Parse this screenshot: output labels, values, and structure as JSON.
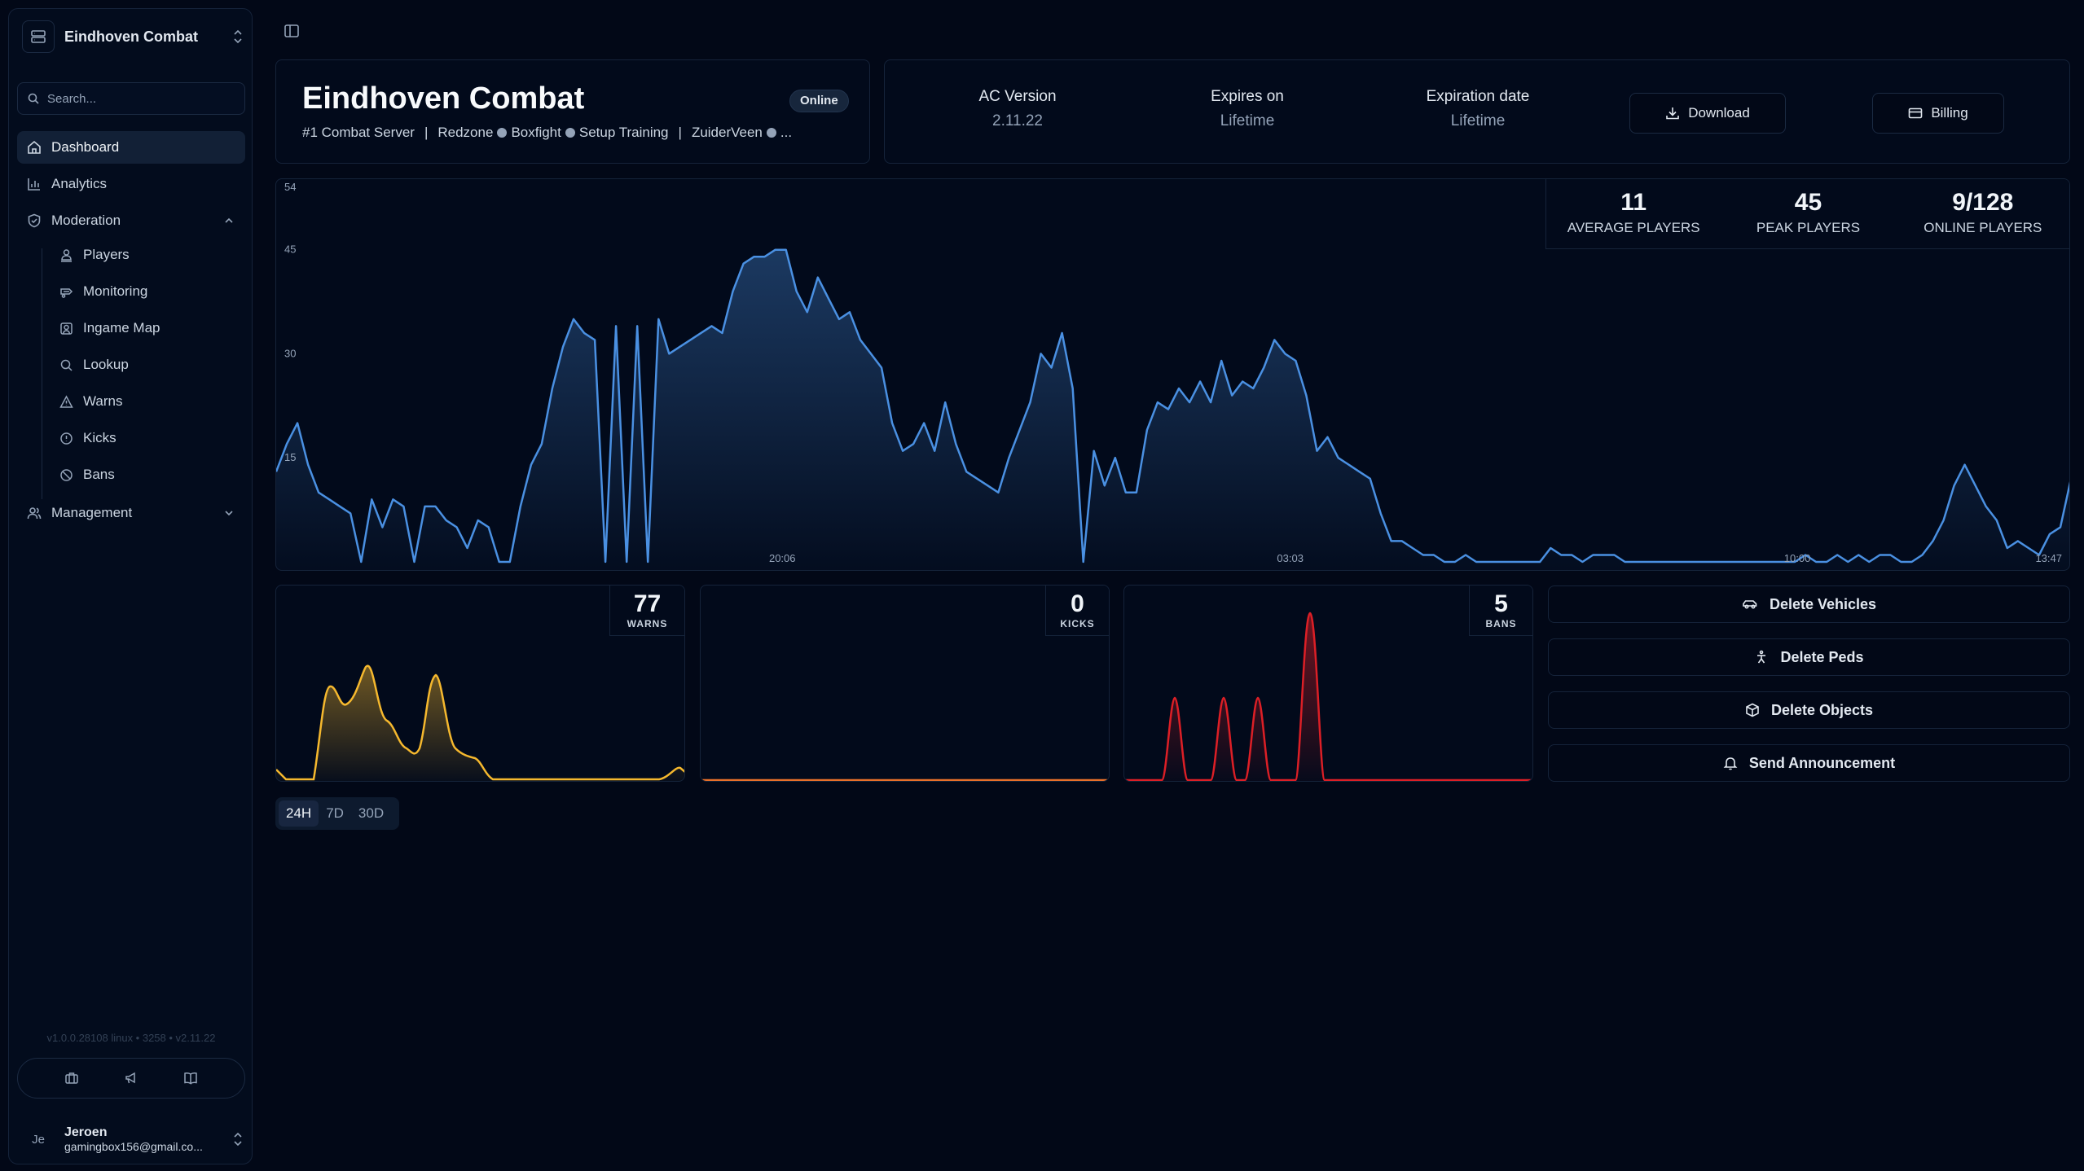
{
  "server": {
    "name": "Eindhoven Combat"
  },
  "search": {
    "placeholder": "Search..."
  },
  "nav": {
    "dashboard": "Dashboard",
    "analytics": "Analytics",
    "moderation": "Moderation",
    "moderation_items": [
      "Players",
      "Monitoring",
      "Ingame Map",
      "Lookup",
      "Warns",
      "Kicks",
      "Bans"
    ],
    "management": "Management"
  },
  "footer": {
    "version": "v1.0.0.28108 linux  •  3258  •  v2.11.22"
  },
  "user": {
    "initials": "Je",
    "name": "Jeroen",
    "email": "gamingbox156@gmail.co..."
  },
  "header": {
    "title": "Eindhoven Combat",
    "status": "Online",
    "subtitle": "#1 Combat Server",
    "separator": "|",
    "tags": [
      "Redzone",
      "Boxfight",
      "Setup Training"
    ],
    "location": "ZuiderVeen",
    "truncation": "..."
  },
  "license": {
    "ac_version_label": "AC Version",
    "ac_version": "2.11.22",
    "expires_label": "Expires on",
    "expires": "Lifetime",
    "expiration_label": "Expiration date",
    "expiration": "Lifetime",
    "download": "Download",
    "billing": "Billing"
  },
  "stats": {
    "average": "11",
    "average_label": "AVERAGE PLAYERS",
    "peak": "45",
    "peak_label": "PEAK PLAYERS",
    "online": "9/128",
    "online_label": "ONLINE PLAYERS"
  },
  "mini": {
    "warns": "77",
    "warns_label": "WARNS",
    "kicks": "0",
    "kicks_label": "KICKS",
    "bans": "5",
    "bans_label": "BANS"
  },
  "actions": {
    "delete_vehicles": "Delete Vehicles",
    "delete_peds": "Delete Peds",
    "delete_objects": "Delete Objects",
    "send_announcement": "Send Announcement"
  },
  "range": {
    "options": [
      "24H",
      "7D",
      "30D"
    ],
    "selected": "24H"
  },
  "colors": {
    "background": "#020817",
    "players_line": "#4a90e2",
    "warns_line": "#f5b82e",
    "bans_line": "#dc1f26"
  },
  "chart_data": {
    "type": "area",
    "ylabel_ticks": [
      54,
      45,
      30,
      15
    ],
    "x_ticks": [
      "20:06",
      "03:03",
      "10:00",
      "13:47"
    ],
    "ylim": [
      0,
      54
    ],
    "grid": false,
    "series": [
      {
        "values": [
          13,
          17,
          20,
          14,
          10,
          9,
          8,
          7,
          0,
          9,
          5,
          9,
          8,
          0,
          8,
          8,
          6,
          5,
          2,
          6,
          5,
          0,
          0,
          8,
          14,
          17,
          25,
          31,
          35,
          33,
          32,
          0,
          34,
          0,
          34,
          0,
          35,
          30,
          31,
          32,
          33,
          34,
          33,
          39,
          43,
          44,
          44,
          45,
          45,
          39,
          36,
          41,
          38,
          35,
          36,
          32,
          30,
          28,
          20,
          16,
          17,
          20,
          16,
          23,
          17,
          13,
          12,
          11,
          10,
          15,
          19,
          23,
          30,
          28,
          33,
          25,
          0,
          16,
          11,
          15,
          10,
          10,
          19,
          23,
          22,
          25,
          23,
          26,
          23,
          29,
          24,
          26,
          25,
          28,
          32,
          30,
          29,
          24,
          16,
          18,
          15,
          14,
          13,
          12,
          7,
          3,
          3,
          2,
          1,
          1,
          0,
          0,
          1,
          0,
          0,
          0,
          0,
          0,
          0,
          0,
          2,
          1,
          1,
          0,
          1,
          1,
          1,
          0,
          0,
          0,
          0,
          0,
          0,
          0,
          0,
          0,
          0,
          0,
          0,
          0,
          0,
          0,
          0,
          0,
          1,
          0,
          0,
          1,
          0,
          1,
          0,
          1,
          1,
          0,
          0,
          1,
          3,
          6,
          11,
          14,
          11,
          8,
          6,
          2,
          3,
          2,
          1,
          4,
          5,
          12
        ]
      }
    ]
  }
}
